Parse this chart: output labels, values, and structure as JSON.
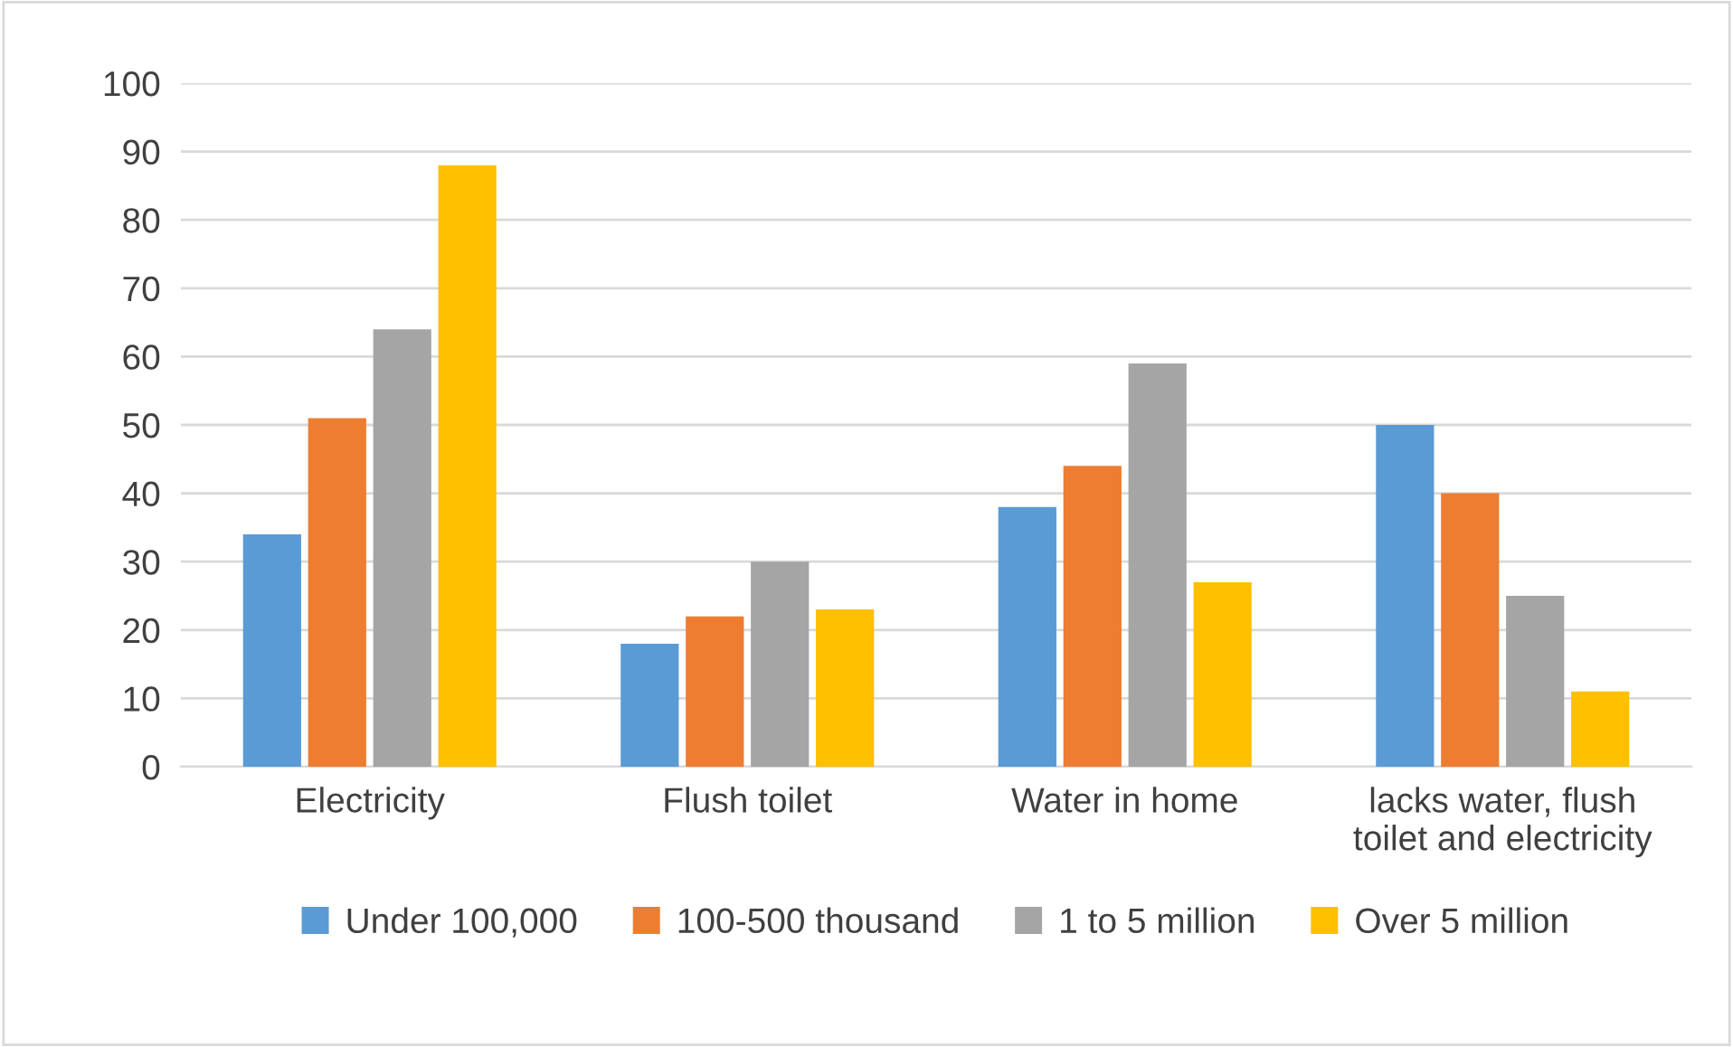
{
  "chart_data": {
    "type": "bar",
    "categories": [
      "Electricity",
      "Flush toilet",
      "Water in home",
      "lacks water, flush\ntoilet and electricity"
    ],
    "series": [
      {
        "name": "Under 100,000",
        "color": "#5b9bd5",
        "values": [
          34,
          18,
          38,
          50
        ]
      },
      {
        "name": "100-500 thousand",
        "color": "#ed7d31",
        "values": [
          51,
          22,
          44,
          40
        ]
      },
      {
        "name": "1 to 5 million",
        "color": "#a5a5a5",
        "values": [
          64,
          30,
          59,
          25
        ]
      },
      {
        "name": "Over 5 million",
        "color": "#ffc000",
        "values": [
          88,
          23,
          27,
          11
        ]
      }
    ],
    "ylim": [
      0,
      100
    ],
    "yticks": [
      0,
      10,
      20,
      30,
      40,
      50,
      60,
      70,
      80,
      90,
      100
    ],
    "grid": "y",
    "legend": "bottom"
  }
}
